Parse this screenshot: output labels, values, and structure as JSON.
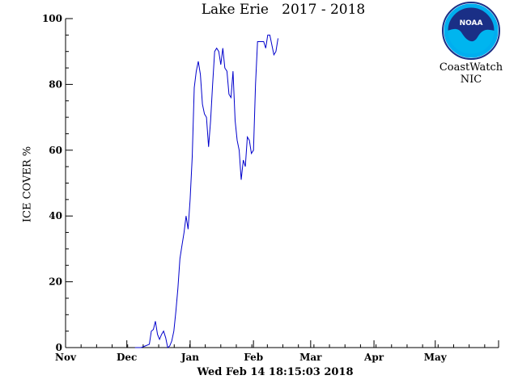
{
  "chart_data": {
    "type": "line",
    "title": "Lake Erie   2017 - 2018",
    "ylabel": "ICE COVER %",
    "xlabel": "",
    "ylim": [
      0,
      100
    ],
    "yticks": [
      0,
      20,
      40,
      60,
      80,
      100
    ],
    "xlim_months": [
      "Nov",
      "Jun"
    ],
    "xticks": [
      "Nov",
      "Dec",
      "Jan",
      "Feb",
      "Mar",
      "Apr",
      "May"
    ],
    "grid": false,
    "line_color": "#0000cc",
    "series": [
      {
        "points": [
          [
            "2017-12-05",
            0
          ],
          [
            "2017-12-08",
            0
          ],
          [
            "2017-12-10",
            0.5
          ],
          [
            "2017-12-12",
            1
          ],
          [
            "2017-12-13",
            5
          ],
          [
            "2017-12-14",
            5.5
          ],
          [
            "2017-12-15",
            8
          ],
          [
            "2017-12-16",
            4
          ],
          [
            "2017-12-17",
            2.5
          ],
          [
            "2017-12-18",
            4
          ],
          [
            "2017-12-19",
            5
          ],
          [
            "2017-12-20",
            3
          ],
          [
            "2017-12-21",
            0
          ],
          [
            "2017-12-22",
            0.5
          ],
          [
            "2017-12-23",
            2
          ],
          [
            "2017-12-24",
            5
          ],
          [
            "2017-12-25",
            11
          ],
          [
            "2017-12-26",
            18
          ],
          [
            "2017-12-27",
            27
          ],
          [
            "2017-12-28",
            31
          ],
          [
            "2017-12-29",
            35
          ],
          [
            "2017-12-30",
            40
          ],
          [
            "2017-12-31",
            36
          ],
          [
            "2018-01-01",
            45
          ],
          [
            "2018-01-02",
            58
          ],
          [
            "2018-01-03",
            79
          ],
          [
            "2018-01-04",
            84
          ],
          [
            "2018-01-05",
            87
          ],
          [
            "2018-01-06",
            83
          ],
          [
            "2018-01-07",
            74
          ],
          [
            "2018-01-08",
            71
          ],
          [
            "2018-01-09",
            70
          ],
          [
            "2018-01-10",
            61
          ],
          [
            "2018-01-11",
            69
          ],
          [
            "2018-01-12",
            80
          ],
          [
            "2018-01-13",
            90
          ],
          [
            "2018-01-14",
            91
          ],
          [
            "2018-01-15",
            90
          ],
          [
            "2018-01-16",
            86
          ],
          [
            "2018-01-17",
            91
          ],
          [
            "2018-01-18",
            85
          ],
          [
            "2018-01-19",
            84
          ],
          [
            "2018-01-20",
            77
          ],
          [
            "2018-01-21",
            76
          ],
          [
            "2018-01-22",
            84
          ],
          [
            "2018-01-23",
            69
          ],
          [
            "2018-01-24",
            63
          ],
          [
            "2018-01-25",
            60
          ],
          [
            "2018-01-26",
            51
          ],
          [
            "2018-01-27",
            57
          ],
          [
            "2018-01-28",
            55
          ],
          [
            "2018-01-29",
            64
          ],
          [
            "2018-01-30",
            63
          ],
          [
            "2018-01-31",
            59
          ],
          [
            "2018-02-01",
            60
          ],
          [
            "2018-02-02",
            80
          ],
          [
            "2018-02-03",
            93
          ],
          [
            "2018-02-04",
            93
          ],
          [
            "2018-02-05",
            93
          ],
          [
            "2018-02-06",
            93
          ],
          [
            "2018-02-07",
            91
          ],
          [
            "2018-02-08",
            95
          ],
          [
            "2018-02-09",
            95
          ],
          [
            "2018-02-10",
            92
          ],
          [
            "2018-02-11",
            89
          ],
          [
            "2018-02-12",
            90
          ],
          [
            "2018-02-13",
            94
          ]
        ]
      }
    ]
  },
  "timestamp": "Wed Feb 14 18:15:03 2018",
  "branding": {
    "logo_text": "NOAA",
    "line1": "CoastWatch",
    "line2": "NIC"
  },
  "colors": {
    "logo_ring": "#00aeef",
    "logo_dark": "#1a2f86",
    "logo_wave": "#00b5ef"
  }
}
